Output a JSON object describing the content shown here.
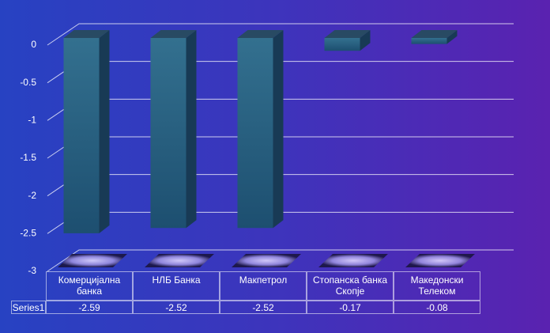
{
  "chart_data": {
    "type": "bar",
    "categories": [
      "Комерцијална банка",
      "НЛБ Банка",
      "Макпетрол",
      "Стопанска банка Скопје",
      "Македонски Телеком"
    ],
    "series": [
      {
        "name": "Series1",
        "color": "#2a6486",
        "values": [
          -2.59,
          -2.52,
          -2.52,
          -0.17,
          -0.08
        ]
      }
    ],
    "ylim": [
      -3,
      0
    ],
    "yticks": [
      0,
      -0.5,
      -1,
      -1.5,
      -2,
      -2.5,
      -3
    ],
    "grid": true
  }
}
